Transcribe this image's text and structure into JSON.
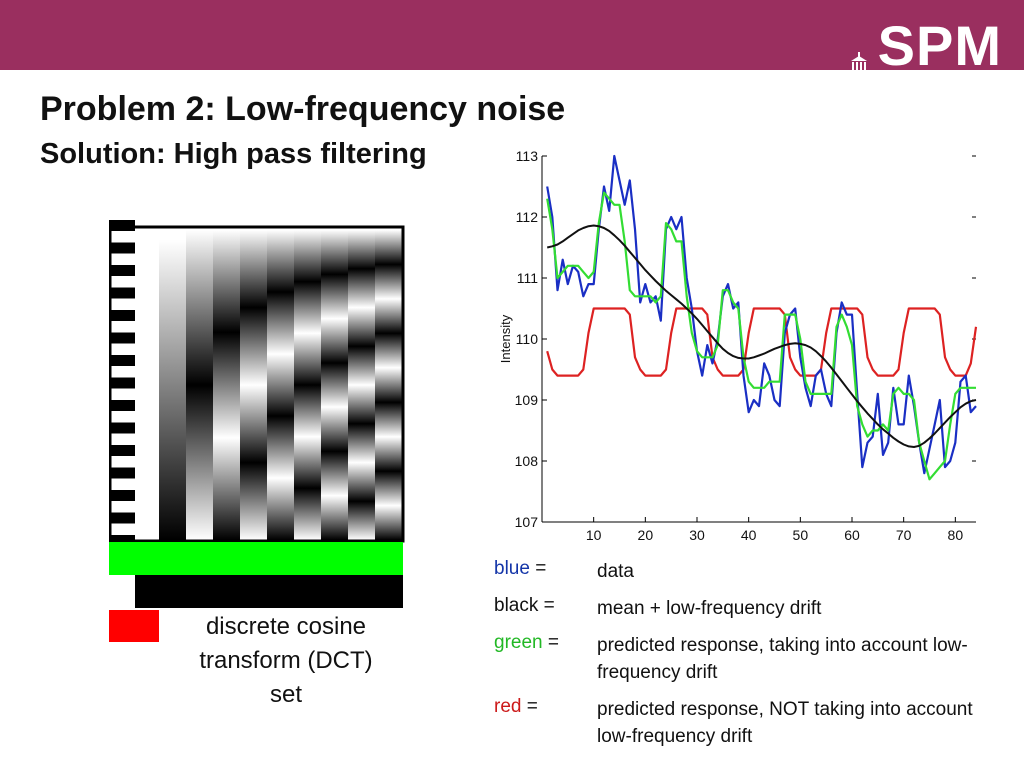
{
  "header": {
    "logo_text": "SPM",
    "colors": {
      "bar": "#9a2f5f",
      "logo": "#ffffff"
    }
  },
  "slide": {
    "title": "Problem 2: Low-frequency noise",
    "subtitle": "Solution: High pass filtering"
  },
  "dct": {
    "caption_lines": [
      "discrete cosine",
      "transform (DCT)",
      "set"
    ],
    "colors": {
      "highlight_green": "#00ff00",
      "highlight_black": "#000000",
      "marker_red": "#ff0000"
    }
  },
  "legend": {
    "items": [
      {
        "key_word": "blue",
        "key_sep": " =",
        "color": "#1435a8",
        "description": "data"
      },
      {
        "key_word": "black",
        "key_sep": " =",
        "color": "#111111",
        "description": "mean + low-frequency drift"
      },
      {
        "key_word": "green",
        "key_sep": " =",
        "color": "#22b825",
        "description": "predicted response, taking into account low-frequency drift"
      },
      {
        "key_word": "red",
        "key_sep": " =",
        "color": "#cc1a1a",
        "description": "predicted response, NOT taking into account low-frequency drift"
      }
    ]
  },
  "chart_data": {
    "type": "line",
    "title": "",
    "xlabel": "",
    "ylabel": "Intensity",
    "xlim": [
      0,
      84
    ],
    "ylim": [
      107,
      113
    ],
    "xticks": [
      10,
      20,
      30,
      40,
      50,
      60,
      70,
      80
    ],
    "yticks": [
      107,
      108,
      109,
      110,
      111,
      112,
      113
    ],
    "x": [
      1,
      2,
      3,
      4,
      5,
      6,
      7,
      8,
      9,
      10,
      11,
      12,
      13,
      14,
      15,
      16,
      17,
      18,
      19,
      20,
      21,
      22,
      23,
      24,
      25,
      26,
      27,
      28,
      29,
      30,
      31,
      32,
      33,
      34,
      35,
      36,
      37,
      38,
      39,
      40,
      41,
      42,
      43,
      44,
      45,
      46,
      47,
      48,
      49,
      50,
      51,
      52,
      53,
      54,
      55,
      56,
      57,
      58,
      59,
      60,
      61,
      62,
      63,
      64,
      65,
      66,
      67,
      68,
      69,
      70,
      71,
      72,
      73,
      74,
      75,
      76,
      77,
      78,
      79,
      80,
      81,
      82,
      83,
      84
    ],
    "series": [
      {
        "color": "#1a2fc4",
        "values": [
          112.5,
          112.0,
          110.8,
          111.3,
          110.9,
          111.2,
          111.1,
          110.7,
          110.9,
          110.9,
          111.8,
          112.5,
          112.1,
          113.0,
          112.6,
          112.2,
          112.6,
          111.8,
          110.6,
          110.9,
          110.6,
          110.7,
          110.3,
          111.8,
          112.0,
          111.8,
          112.0,
          111.0,
          110.5,
          109.8,
          109.4,
          109.9,
          109.6,
          110.0,
          110.7,
          110.9,
          110.5,
          110.6,
          109.4,
          108.8,
          109.0,
          108.9,
          109.6,
          109.4,
          109.0,
          108.9,
          110.1,
          110.4,
          110.5,
          109.7,
          109.2,
          108.9,
          109.4,
          109.5,
          109.1,
          108.9,
          110.1,
          110.6,
          110.4,
          110.4,
          109.1,
          107.9,
          108.3,
          108.4,
          109.1,
          108.1,
          108.3,
          109.2,
          108.6,
          108.6,
          109.4,
          108.9,
          108.3,
          107.8,
          108.2,
          108.6,
          109.0,
          107.9,
          108.0,
          108.3,
          109.3,
          109.4,
          108.8,
          108.9
        ]
      },
      {
        "color": "#111111",
        "values": [
          111.5,
          111.52,
          111.55,
          111.6,
          111.66,
          111.72,
          111.78,
          111.82,
          111.85,
          111.86,
          111.85,
          111.82,
          111.77,
          111.7,
          111.62,
          111.53,
          111.43,
          111.33,
          111.23,
          111.13,
          111.04,
          110.95,
          110.87,
          110.79,
          110.72,
          110.65,
          110.58,
          110.5,
          110.42,
          110.33,
          110.23,
          110.13,
          110.03,
          109.93,
          109.84,
          109.77,
          109.72,
          109.69,
          109.68,
          109.68,
          109.7,
          109.73,
          109.76,
          109.8,
          109.84,
          109.87,
          109.9,
          109.92,
          109.93,
          109.92,
          109.9,
          109.86,
          109.8,
          109.72,
          109.63,
          109.53,
          109.42,
          109.31,
          109.2,
          109.09,
          108.98,
          108.88,
          108.78,
          108.69,
          108.6,
          108.52,
          108.45,
          108.38,
          108.32,
          108.27,
          108.24,
          108.23,
          108.25,
          108.3,
          108.37,
          108.45,
          108.54,
          108.63,
          108.72,
          108.8,
          108.88,
          108.94,
          108.98,
          109.0
        ]
      },
      {
        "color": "#33dd33",
        "values": [
          112.3,
          111.8,
          111.0,
          111.1,
          111.2,
          111.2,
          111.2,
          111.1,
          111.0,
          111.1,
          111.9,
          112.4,
          112.3,
          112.2,
          112.2,
          111.6,
          110.8,
          110.7,
          110.7,
          110.7,
          110.7,
          110.6,
          110.7,
          111.9,
          111.8,
          111.6,
          111.6,
          110.7,
          110.1,
          109.8,
          109.7,
          109.7,
          109.7,
          109.9,
          110.8,
          110.8,
          110.6,
          110.5,
          109.7,
          109.3,
          109.2,
          109.2,
          109.2,
          109.3,
          109.3,
          109.3,
          110.4,
          110.4,
          110.4,
          110.0,
          109.3,
          109.1,
          109.1,
          109.1,
          109.1,
          109.1,
          110.2,
          110.4,
          110.2,
          109.9,
          108.9,
          108.6,
          108.4,
          108.5,
          108.5,
          108.6,
          108.5,
          109.1,
          109.2,
          109.1,
          109.1,
          109.0,
          108.3,
          108.0,
          107.7,
          107.8,
          107.9,
          108.0,
          108.6,
          109.1,
          109.2,
          109.2,
          109.2,
          109.2
        ]
      },
      {
        "color": "#dd2222",
        "values": [
          109.8,
          109.5,
          109.4,
          109.4,
          109.4,
          109.4,
          109.4,
          109.5,
          110.1,
          110.5,
          110.5,
          110.5,
          110.5,
          110.5,
          110.5,
          110.5,
          110.4,
          109.7,
          109.5,
          109.4,
          109.4,
          109.4,
          109.4,
          109.5,
          110.1,
          110.5,
          110.5,
          110.5,
          110.5,
          110.5,
          110.5,
          110.4,
          109.7,
          109.5,
          109.4,
          109.4,
          109.4,
          109.4,
          109.5,
          110.1,
          110.5,
          110.5,
          110.5,
          110.5,
          110.5,
          110.5,
          110.4,
          109.7,
          109.5,
          109.4,
          109.4,
          109.4,
          109.4,
          109.5,
          110.1,
          110.5,
          110.5,
          110.5,
          110.5,
          110.5,
          110.5,
          110.4,
          109.7,
          109.5,
          109.4,
          109.4,
          109.4,
          109.4,
          109.5,
          110.1,
          110.5,
          110.5,
          110.5,
          110.5,
          110.5,
          110.5,
          110.4,
          109.7,
          109.5,
          109.4,
          109.4,
          109.4,
          109.6,
          110.2
        ]
      }
    ]
  }
}
